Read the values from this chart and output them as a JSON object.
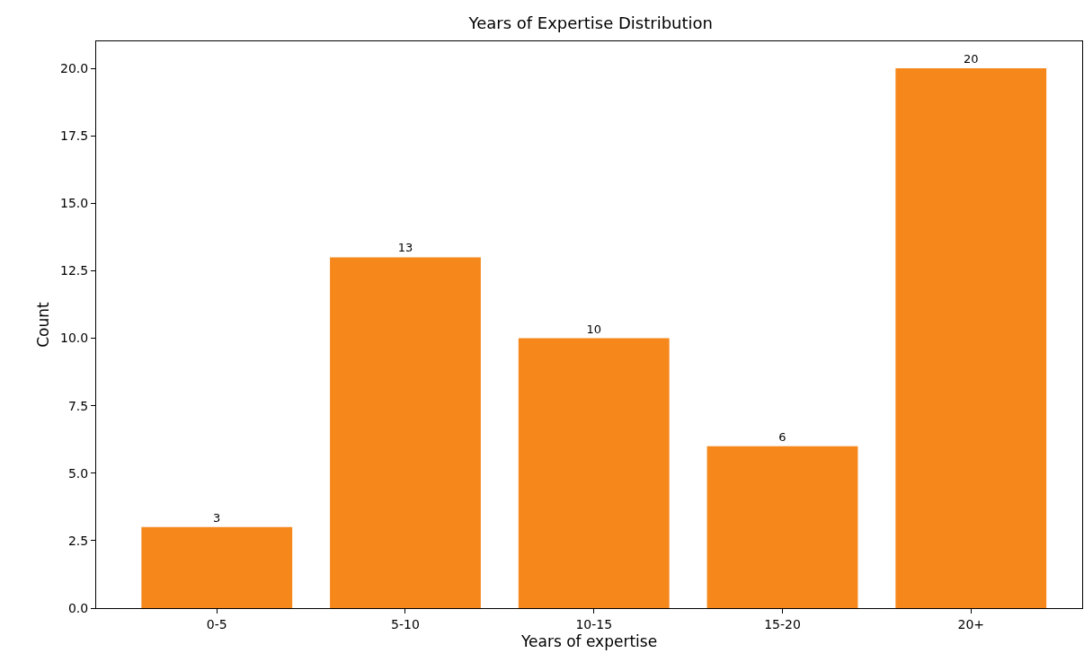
{
  "chart_data": {
    "type": "bar",
    "title": "Years of Expertise Distribution",
    "xlabel": "Years of expertise",
    "ylabel": "Count",
    "categories": [
      "0-5",
      "5-10",
      "10-15",
      "15-20",
      "20+"
    ],
    "values": [
      3,
      13,
      10,
      6,
      20
    ],
    "color": "#f5871b",
    "ylim": [
      0,
      21
    ],
    "yticks": [
      {
        "value": 0,
        "label": "0.0"
      },
      {
        "value": 2.5,
        "label": "2.5"
      },
      {
        "value": 5,
        "label": "5.0"
      },
      {
        "value": 7.5,
        "label": "7.5"
      },
      {
        "value": 10,
        "label": "10.0"
      },
      {
        "value": 12.5,
        "label": "12.5"
      },
      {
        "value": 15,
        "label": "15.0"
      },
      {
        "value": 17.5,
        "label": "17.5"
      },
      {
        "value": 20,
        "label": "20.0"
      }
    ],
    "data_labels": true,
    "legend": false
  }
}
